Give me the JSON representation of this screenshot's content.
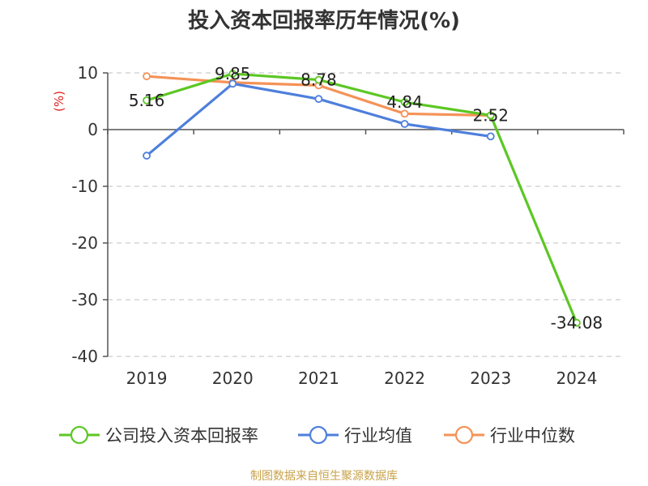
{
  "chart_data": {
    "type": "line",
    "title": "投入资本回报率历年情况(%)",
    "ylabel": "(%)",
    "xlabel": "",
    "categories": [
      "2019",
      "2020",
      "2021",
      "2022",
      "2023",
      "2024"
    ],
    "ylim": [
      -40,
      10
    ],
    "yticks": [
      10,
      0,
      -10,
      -20,
      -30,
      -40
    ],
    "grid": true,
    "legend_position": "bottom",
    "series": [
      {
        "name": "公司投入资本回报率",
        "color": "#5cc724",
        "values": [
          5.16,
          9.85,
          8.78,
          4.84,
          2.52,
          -34.08
        ],
        "labels": [
          "5.16",
          "9.85",
          "8.78",
          "4.84",
          "2.52",
          "-34.08"
        ]
      },
      {
        "name": "行业均值",
        "color": "#4e7fdc",
        "values": [
          -4.6,
          8.1,
          5.4,
          1.0,
          -1.2,
          null
        ]
      },
      {
        "name": "行业中位数",
        "color": "#f59257",
        "values": [
          9.4,
          8.3,
          7.8,
          2.8,
          2.5,
          null
        ]
      }
    ]
  },
  "footer": {
    "source": "制图数据来自恒生聚源数据库"
  }
}
